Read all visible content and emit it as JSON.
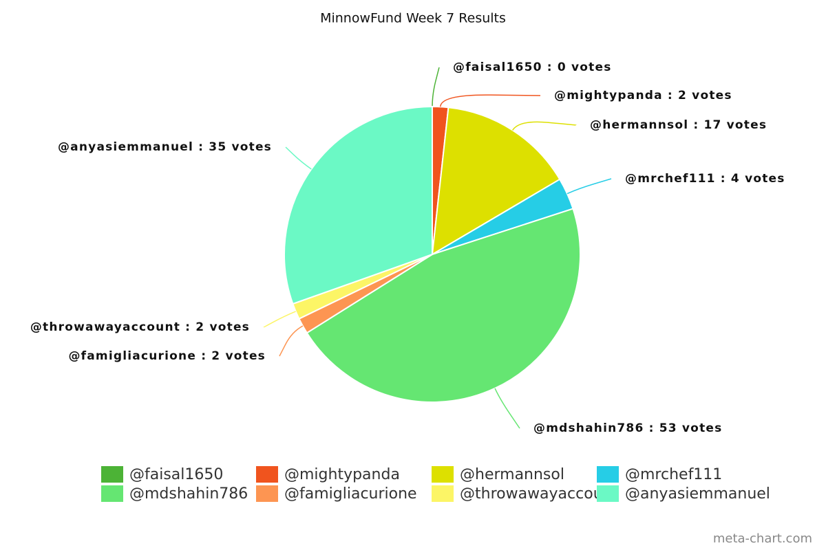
{
  "chart_data": {
    "type": "pie",
    "title": "MinnowFund Week 7 Results",
    "categories": [
      "@faisal1650",
      "@mightypanda",
      "@hermannsol",
      "@mrchef111",
      "@mdshahin786",
      "@famigliacurione",
      "@throwawayaccount",
      "@anyasiemmanuel"
    ],
    "values": [
      0,
      2,
      17,
      4,
      53,
      2,
      2,
      35
    ],
    "value_labels": [
      "@faisal1650 : 0 votes",
      "@mightypanda : 2 votes",
      "@hermannsol : 17 votes",
      "@mrchef111 : 4 votes",
      "@mdshahin786 : 53 votes",
      "@famigliacurione : 2 votes",
      "@throwawayaccount : 2 votes",
      "@anyasiemmanuel : 35 votes"
    ],
    "colors": [
      "#4cb336",
      "#f0541e",
      "#dde000",
      "#26cde6",
      "#65e672",
      "#fd9552",
      "#fcf566",
      "#6bf9c5"
    ],
    "source": "meta-chart.com"
  }
}
